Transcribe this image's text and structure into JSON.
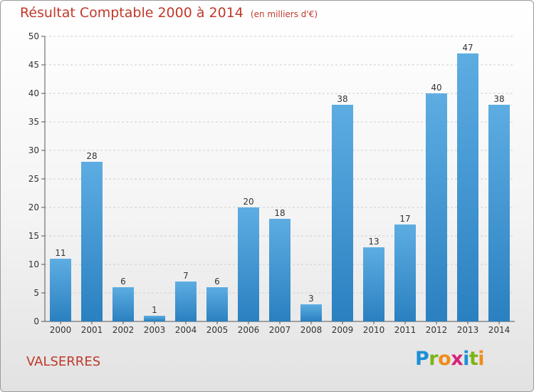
{
  "title": "Résultat Comptable 2000 à 2014",
  "subtitle": "(en milliers d'€)",
  "commune": "VALSERRES",
  "logo": {
    "text": "Proxiti",
    "letters": [
      {
        "char": "P",
        "color": "#1b8fd6"
      },
      {
        "char": "r",
        "color": "#7cb518"
      },
      {
        "char": "o",
        "color": "#f08c1a"
      },
      {
        "char": "x",
        "color": "#d4237a"
      },
      {
        "char": "i",
        "color": "#1b8fd6"
      },
      {
        "char": "t",
        "color": "#7cb518"
      },
      {
        "char": "i",
        "color": "#f08c1a"
      }
    ]
  },
  "colors": {
    "bar_top": "#5dade2",
    "bar_bottom": "#2a80c0",
    "title": "#c0392b"
  },
  "chart_data": {
    "type": "bar",
    "categories": [
      "2000",
      "2001",
      "2002",
      "2003",
      "2004",
      "2005",
      "2006",
      "2007",
      "2008",
      "2009",
      "2010",
      "2011",
      "2012",
      "2013",
      "2014"
    ],
    "values": [
      11,
      28,
      6,
      1,
      7,
      6,
      20,
      18,
      3,
      38,
      13,
      17,
      40,
      47,
      38
    ],
    "ylim": [
      0,
      50
    ],
    "yticks": [
      0,
      5,
      10,
      15,
      20,
      25,
      30,
      35,
      40,
      45,
      50
    ],
    "grid": true,
    "xlabel": "",
    "ylabel": ""
  }
}
